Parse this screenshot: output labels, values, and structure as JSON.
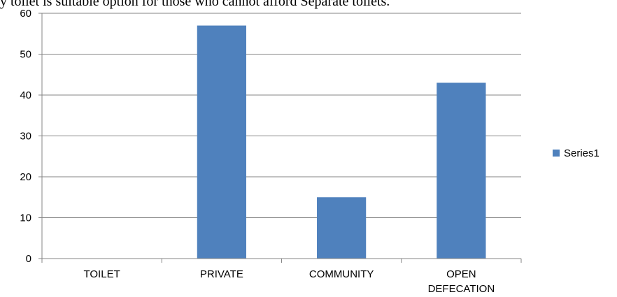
{
  "caption": "y toilet is suitable option for those who cannot afford Separate toilets.",
  "chart_data": {
    "type": "bar",
    "title": "",
    "xlabel": "",
    "ylabel": "",
    "categories": [
      [
        "TOILET"
      ],
      [
        "PRIVATE"
      ],
      [
        "COMMUNITY"
      ],
      [
        "OPEN",
        "DEFECATION"
      ]
    ],
    "series": [
      {
        "name": "Series1",
        "values": [
          0,
          57,
          15,
          43
        ],
        "color": "#4F81BD"
      }
    ],
    "ylim": [
      0,
      60
    ],
    "yticks": [
      0,
      10,
      20,
      30,
      40,
      50,
      60
    ],
    "grid": true,
    "legend_position": "right",
    "colors": {
      "grid": "#868686",
      "axis": "#868686",
      "bar": "#4F81BD"
    }
  }
}
